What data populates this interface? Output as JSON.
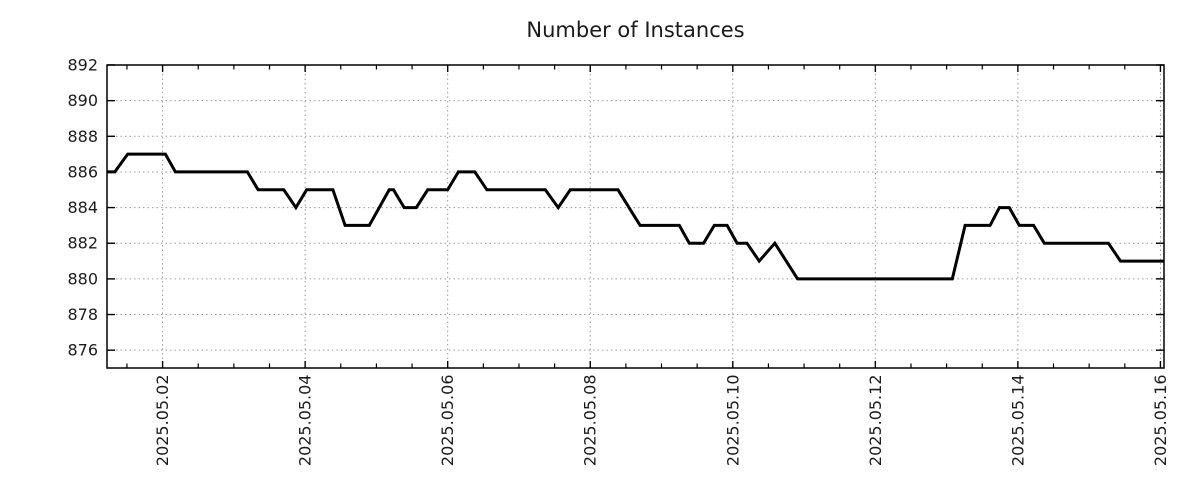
{
  "page": {
    "background": "#ffffff"
  },
  "chart_data": {
    "type": "line",
    "title": "Number of Instances",
    "xlabel": "",
    "ylabel": "",
    "legend": "none",
    "grid": "dotted",
    "line_color": "#000000",
    "grid_color": "#9a9a9a",
    "axis_color": "#000000",
    "x_axis": {
      "unit": "day of May 2025",
      "min": 1.22,
      "max": 16.05,
      "minor_tick_step": 0.5,
      "major_ticks": [
        {
          "x": 2,
          "label": "2025.05.02"
        },
        {
          "x": 4,
          "label": "2025.05.04"
        },
        {
          "x": 6,
          "label": "2025.05.06"
        },
        {
          "x": 8,
          "label": "2025.05.08"
        },
        {
          "x": 10,
          "label": "2025.05.10"
        },
        {
          "x": 12,
          "label": "2025.05.12"
        },
        {
          "x": 14,
          "label": "2025.05.14"
        },
        {
          "x": 16,
          "label": "2025.05.16"
        }
      ]
    },
    "y_axis": {
      "min": 875,
      "max": 892,
      "tick_step": 2,
      "ticks": [
        876,
        878,
        880,
        882,
        884,
        886,
        888,
        890,
        892
      ]
    },
    "series": [
      {
        "name": "instances",
        "points": [
          [
            1.22,
            886
          ],
          [
            1.33,
            886
          ],
          [
            1.51,
            887
          ],
          [
            2.04,
            887
          ],
          [
            2.18,
            886
          ],
          [
            3.19,
            886
          ],
          [
            3.34,
            885
          ],
          [
            3.7,
            885
          ],
          [
            3.87,
            884
          ],
          [
            4.02,
            885
          ],
          [
            4.39,
            885
          ],
          [
            4.56,
            883
          ],
          [
            4.9,
            883
          ],
          [
            5.18,
            885
          ],
          [
            5.24,
            885
          ],
          [
            5.39,
            884
          ],
          [
            5.56,
            884
          ],
          [
            5.72,
            885
          ],
          [
            6.0,
            885
          ],
          [
            6.15,
            886
          ],
          [
            6.38,
            886
          ],
          [
            6.55,
            885
          ],
          [
            7.37,
            885
          ],
          [
            7.55,
            884
          ],
          [
            7.72,
            885
          ],
          [
            8.39,
            885
          ],
          [
            8.7,
            883
          ],
          [
            9.25,
            883
          ],
          [
            9.39,
            882
          ],
          [
            9.59,
            882
          ],
          [
            9.74,
            883
          ],
          [
            9.92,
            883
          ],
          [
            10.06,
            882
          ],
          [
            10.2,
            882
          ],
          [
            10.37,
            881
          ],
          [
            10.59,
            882
          ],
          [
            10.91,
            880
          ],
          [
            13.08,
            880
          ],
          [
            13.26,
            883
          ],
          [
            13.61,
            883
          ],
          [
            13.74,
            884
          ],
          [
            13.88,
            884
          ],
          [
            14.02,
            883
          ],
          [
            14.22,
            883
          ],
          [
            14.37,
            882
          ],
          [
            15.27,
            882
          ],
          [
            15.44,
            881
          ],
          [
            16.05,
            881
          ]
        ]
      }
    ]
  }
}
